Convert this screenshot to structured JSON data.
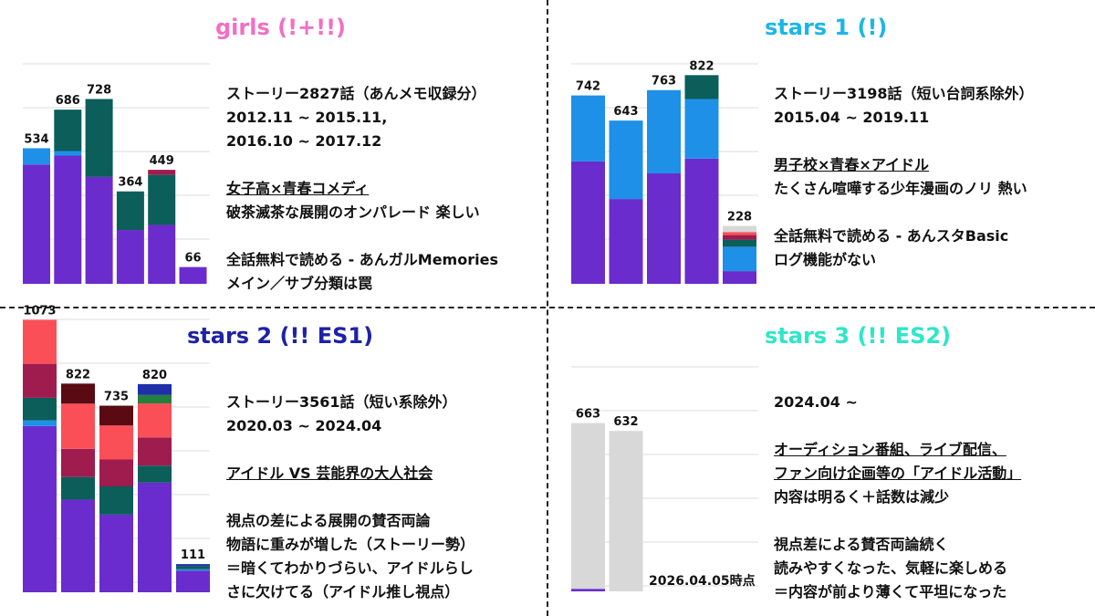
{
  "colors": {
    "purple": "#6a2ccc",
    "blue": "#1e90e8",
    "teal": "#0b5e5a",
    "maroon": "#9e1c4e",
    "salmon": "#fb4f58",
    "darkred": "#5a0a12",
    "navy": "#1e2fa8",
    "green": "#23803c",
    "gray": "#d8d8d8",
    "grid": "#dedede",
    "girls_title": "#f36ec4",
    "stars1_title": "#1cb6e6",
    "stars2_title": "#1e22a6",
    "stars3_title": "#2ee6c8"
  },
  "panels": [
    {
      "id": "girls",
      "title": "girls (!+!!)",
      "lines": [
        {
          "text": "ストーリー2827話（あんメモ収録分）"
        },
        {
          "text": "2012.11 ~ 2015.11,"
        },
        {
          "text": "2016.10 ~ 2017.12"
        },
        {
          "text": ""
        },
        {
          "text": "女子高×青春コメディ",
          "underline": true
        },
        {
          "text": "破茶滅茶な展開のオンパレード 楽しい"
        },
        {
          "text": ""
        },
        {
          "text": "全話無料で読める - あんガルMemories"
        },
        {
          "text": "メイン／サブ分類は罠"
        }
      ]
    },
    {
      "id": "stars1",
      "title": "stars 1 (!)",
      "lines": [
        {
          "text": "ストーリー3198話（短い台詞系除外）"
        },
        {
          "text": "2015.04 ~ 2019.11"
        },
        {
          "text": ""
        },
        {
          "text": "男子校×青春×アイドル",
          "underline": true
        },
        {
          "text": "たくさん喧嘩する少年漫画のノリ 熱い"
        },
        {
          "text": ""
        },
        {
          "text": "全話無料で読める - あんスタBasic"
        },
        {
          "text": "ログ機能がない"
        }
      ]
    },
    {
      "id": "stars2",
      "title": "stars 2 (!! ES1)",
      "lines": [
        {
          "text": "ストーリー3561話（短い系除外）"
        },
        {
          "text": "2020.03 ~ 2024.04"
        },
        {
          "text": ""
        },
        {
          "text": "アイドル VS 芸能界の大人社会",
          "underline": true
        },
        {
          "text": ""
        },
        {
          "text": "視点の差による展開の賛否両論"
        },
        {
          "text": "物語に重みが増した（ストーリー勢）"
        },
        {
          "text": "＝暗くてわかりづらい、アイドルらし"
        },
        {
          "text": "さに欠けてる（アイドル推し視点）"
        }
      ]
    },
    {
      "id": "stars3",
      "title": "stars 3 (!! ES2)",
      "note": "2026.04.05時点",
      "lines": [
        {
          "text": "2024.04 ~"
        },
        {
          "text": ""
        },
        {
          "text": "オーディション番組、ライブ配信、",
          "underline": true
        },
        {
          "text": "ファン向け企画等の「アイドル活動」",
          "underline": true
        },
        {
          "text": "内容は明るく＋話数は減少"
        },
        {
          "text": ""
        },
        {
          "text": "視点差による賛否両論続く"
        },
        {
          "text": "読みやすくなった、気軽に楽しめる"
        },
        {
          "text": "＝内容が前より薄くて平坦になった"
        }
      ]
    }
  ],
  "chart_data": [
    {
      "type": "bar",
      "stacked": true,
      "title": "girls (!+!!)",
      "ylim": [
        0,
        1100
      ],
      "grid": true,
      "bars": [
        {
          "total": "534",
          "segments": [
            {
              "color": "purple",
              "value": 470
            },
            {
              "color": "blue",
              "value": 64
            }
          ]
        },
        {
          "total": "686",
          "segments": [
            {
              "color": "purple",
              "value": 505
            },
            {
              "color": "blue",
              "value": 18
            },
            {
              "color": "teal",
              "value": 163
            }
          ]
        },
        {
          "total": "728",
          "segments": [
            {
              "color": "purple",
              "value": 421
            },
            {
              "color": "teal",
              "value": 307
            }
          ]
        },
        {
          "total": "364",
          "segments": [
            {
              "color": "purple",
              "value": 212
            },
            {
              "color": "teal",
              "value": 152
            }
          ]
        },
        {
          "total": "449",
          "segments": [
            {
              "color": "purple",
              "value": 232
            },
            {
              "color": "teal",
              "value": 197
            },
            {
              "color": "maroon",
              "value": 20
            }
          ]
        },
        {
          "total": "66",
          "segments": [
            {
              "color": "purple",
              "value": 66
            }
          ]
        }
      ]
    },
    {
      "type": "bar",
      "stacked": true,
      "title": "stars 1 (!)",
      "ylim": [
        0,
        1100
      ],
      "grid": true,
      "bars": [
        {
          "total": "742",
          "segments": [
            {
              "color": "purple",
              "value": 482
            },
            {
              "color": "blue",
              "value": 260
            }
          ]
        },
        {
          "total": "643",
          "segments": [
            {
              "color": "purple",
              "value": 334
            },
            {
              "color": "blue",
              "value": 309
            }
          ]
        },
        {
          "total": "763",
          "segments": [
            {
              "color": "purple",
              "value": 435
            },
            {
              "color": "blue",
              "value": 328
            }
          ]
        },
        {
          "total": "822",
          "segments": [
            {
              "color": "purple",
              "value": 493
            },
            {
              "color": "blue",
              "value": 235
            },
            {
              "color": "teal",
              "value": 94
            }
          ]
        },
        {
          "total": "228",
          "segments": [
            {
              "color": "purple",
              "value": 50
            },
            {
              "color": "blue",
              "value": 96
            },
            {
              "color": "teal",
              "value": 28
            },
            {
              "color": "maroon",
              "value": 18
            },
            {
              "color": "salmon",
              "value": 12
            },
            {
              "color": "gray",
              "value": 24
            }
          ]
        }
      ]
    },
    {
      "type": "bar",
      "stacked": true,
      "title": "stars 2 (!! ES1)",
      "ylim": [
        0,
        1100
      ],
      "grid": true,
      "bars": [
        {
          "total": "1073",
          "segments": [
            {
              "color": "purple",
              "value": 655
            },
            {
              "color": "blue",
              "value": 22
            },
            {
              "color": "teal",
              "value": 89
            },
            {
              "color": "maroon",
              "value": 134
            },
            {
              "color": "salmon",
              "value": 173
            }
          ]
        },
        {
          "total": "822",
          "segments": [
            {
              "color": "purple",
              "value": 365
            },
            {
              "color": "teal",
              "value": 89
            },
            {
              "color": "maroon",
              "value": 111
            },
            {
              "color": "salmon",
              "value": 178
            },
            {
              "color": "darkred",
              "value": 79
            }
          ]
        },
        {
          "total": "735",
          "segments": [
            {
              "color": "purple",
              "value": 306
            },
            {
              "color": "teal",
              "value": 111
            },
            {
              "color": "maroon",
              "value": 106
            },
            {
              "color": "salmon",
              "value": 134
            },
            {
              "color": "darkred",
              "value": 78
            }
          ]
        },
        {
          "total": "820",
          "segments": [
            {
              "color": "purple",
              "value": 432
            },
            {
              "color": "teal",
              "value": 67
            },
            {
              "color": "maroon",
              "value": 111
            },
            {
              "color": "salmon",
              "value": 134
            },
            {
              "color": "green",
              "value": 33
            },
            {
              "color": "navy",
              "value": 43
            }
          ]
        },
        {
          "total": "111",
          "segments": [
            {
              "color": "purple",
              "value": 85
            },
            {
              "color": "blue",
              "value": 6
            },
            {
              "color": "teal",
              "value": 12
            },
            {
              "color": "navy",
              "value": 8
            }
          ]
        }
      ]
    },
    {
      "type": "bar",
      "stacked": true,
      "title": "stars 3 (!! ES2)",
      "ylim": [
        0,
        1100
      ],
      "grid": true,
      "bars": [
        {
          "total": "663",
          "segments": [
            {
              "color": "purple",
              "value": 10
            },
            {
              "color": "gray",
              "value": 653
            }
          ]
        },
        {
          "total": "632",
          "segments": [
            {
              "color": "gray",
              "value": 632
            }
          ]
        }
      ]
    }
  ]
}
